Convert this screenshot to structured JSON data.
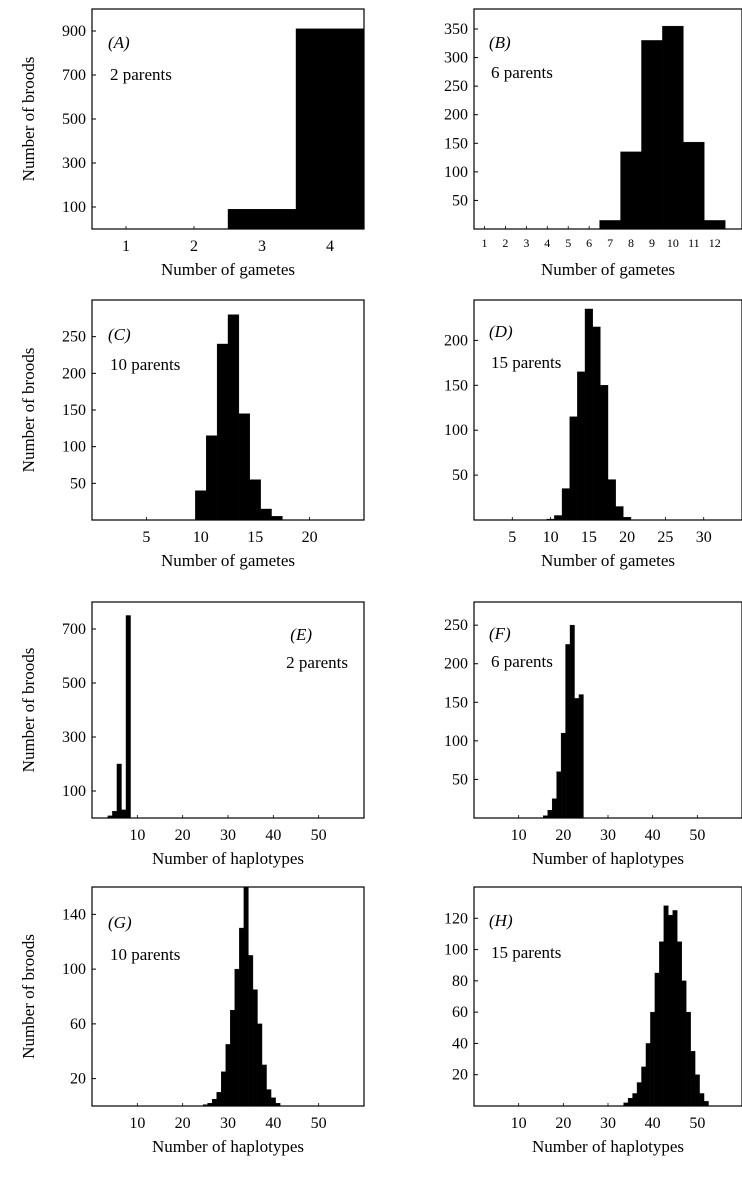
{
  "chart_data": [
    {
      "type": "bar",
      "panel": "(A)",
      "annotation": "2 parents",
      "xlabel": "Number of gametes",
      "ylabel": "Number of broods",
      "xlim": [
        0.5,
        4.5
      ],
      "ylim": [
        0,
        1000
      ],
      "xticks": [
        1,
        2,
        3,
        4
      ],
      "yticks": [
        100,
        300,
        500,
        700,
        900
      ],
      "x": [
        3,
        4
      ],
      "values": [
        90,
        910
      ]
    },
    {
      "type": "bar",
      "panel": "(B)",
      "annotation": "6 parents",
      "xlabel": "Number of gametes",
      "ylabel": "",
      "xlim": [
        0.5,
        13.3
      ],
      "ylim": [
        0,
        385
      ],
      "xticks": [
        1,
        2,
        3,
        4,
        5,
        6,
        7,
        8,
        9,
        10,
        11,
        12
      ],
      "yticks": [
        50,
        100,
        150,
        200,
        250,
        300,
        350
      ],
      "x": [
        7,
        8,
        9,
        10,
        11,
        12
      ],
      "values": [
        15,
        135,
        330,
        355,
        152,
        15
      ]
    },
    {
      "type": "bar",
      "panel": "(C)",
      "annotation": "10 parents",
      "xlabel": "Number of gametes",
      "ylabel": "Number of broods",
      "xlim": [
        0,
        25
      ],
      "ylim": [
        0,
        300
      ],
      "xticks": [
        5,
        10,
        15,
        20
      ],
      "yticks": [
        50,
        100,
        150,
        200,
        250
      ],
      "x": [
        10,
        11,
        12,
        13,
        14,
        15,
        16,
        17
      ],
      "values": [
        40,
        115,
        240,
        280,
        145,
        55,
        15,
        5
      ]
    },
    {
      "type": "bar",
      "panel": "(D)",
      "annotation": "15 parents",
      "xlabel": "Number of gametes",
      "ylabel": "",
      "xlim": [
        0,
        35
      ],
      "ylim": [
        0,
        245
      ],
      "xticks": [
        5,
        10,
        15,
        20,
        25,
        30
      ],
      "yticks": [
        50,
        100,
        150,
        200
      ],
      "x": [
        10,
        11,
        12,
        13,
        14,
        15,
        16,
        17,
        18,
        19,
        20
      ],
      "values": [
        1,
        5,
        35,
        115,
        165,
        235,
        215,
        150,
        45,
        15,
        3
      ]
    },
    {
      "type": "bar",
      "panel": "(E)",
      "annotation": "2 parents",
      "xlabel": "Number of haplotypes",
      "ylabel": "Number of broods",
      "xlim": [
        0,
        60
      ],
      "ylim": [
        0,
        800
      ],
      "xticks": [
        10,
        20,
        30,
        40,
        50
      ],
      "yticks": [
        100,
        300,
        500,
        700
      ],
      "x": [
        4,
        5,
        6,
        7,
        8
      ],
      "values": [
        8,
        25,
        200,
        30,
        750
      ]
    },
    {
      "type": "bar",
      "panel": "(F)",
      "annotation": "6 parents",
      "xlabel": "Number of haplotypes",
      "ylabel": "",
      "xlim": [
        0,
        60
      ],
      "ylim": [
        0,
        280
      ],
      "xticks": [
        10,
        20,
        30,
        40,
        50
      ],
      "yticks": [
        50,
        100,
        150,
        200,
        250
      ],
      "x": [
        16,
        17,
        18,
        19,
        20,
        21,
        22,
        23,
        24
      ],
      "values": [
        3,
        10,
        25,
        60,
        110,
        225,
        250,
        155,
        160
      ]
    },
    {
      "type": "bar",
      "panel": "(G)",
      "annotation": "10 parents",
      "xlabel": "Number of haplotypes",
      "ylabel": "Number of broods",
      "xlim": [
        0,
        60
      ],
      "ylim": [
        0,
        160
      ],
      "xticks": [
        10,
        20,
        30,
        40,
        50
      ],
      "yticks": [
        20,
        60,
        100,
        140
      ],
      "x": [
        25,
        26,
        27,
        28,
        29,
        30,
        31,
        32,
        33,
        34,
        35,
        36,
        37,
        38,
        39,
        40,
        41
      ],
      "values": [
        1,
        2,
        5,
        10,
        25,
        45,
        70,
        100,
        130,
        160,
        110,
        85,
        60,
        30,
        12,
        6,
        2
      ]
    },
    {
      "type": "bar",
      "panel": "(H)",
      "annotation": "15 parents",
      "xlabel": "Number of haplotypes",
      "ylabel": "",
      "xlim": [
        0,
        60
      ],
      "ylim": [
        0,
        140
      ],
      "xticks": [
        10,
        20,
        30,
        40,
        50
      ],
      "yticks": [
        20,
        40,
        60,
        80,
        100,
        120
      ],
      "x": [
        34,
        35,
        36,
        37,
        38,
        39,
        40,
        41,
        42,
        43,
        44,
        45,
        46,
        47,
        48,
        49,
        50,
        51,
        52
      ],
      "values": [
        2,
        5,
        8,
        15,
        25,
        40,
        60,
        85,
        105,
        128,
        122,
        125,
        105,
        80,
        60,
        35,
        20,
        8,
        3
      ]
    }
  ]
}
